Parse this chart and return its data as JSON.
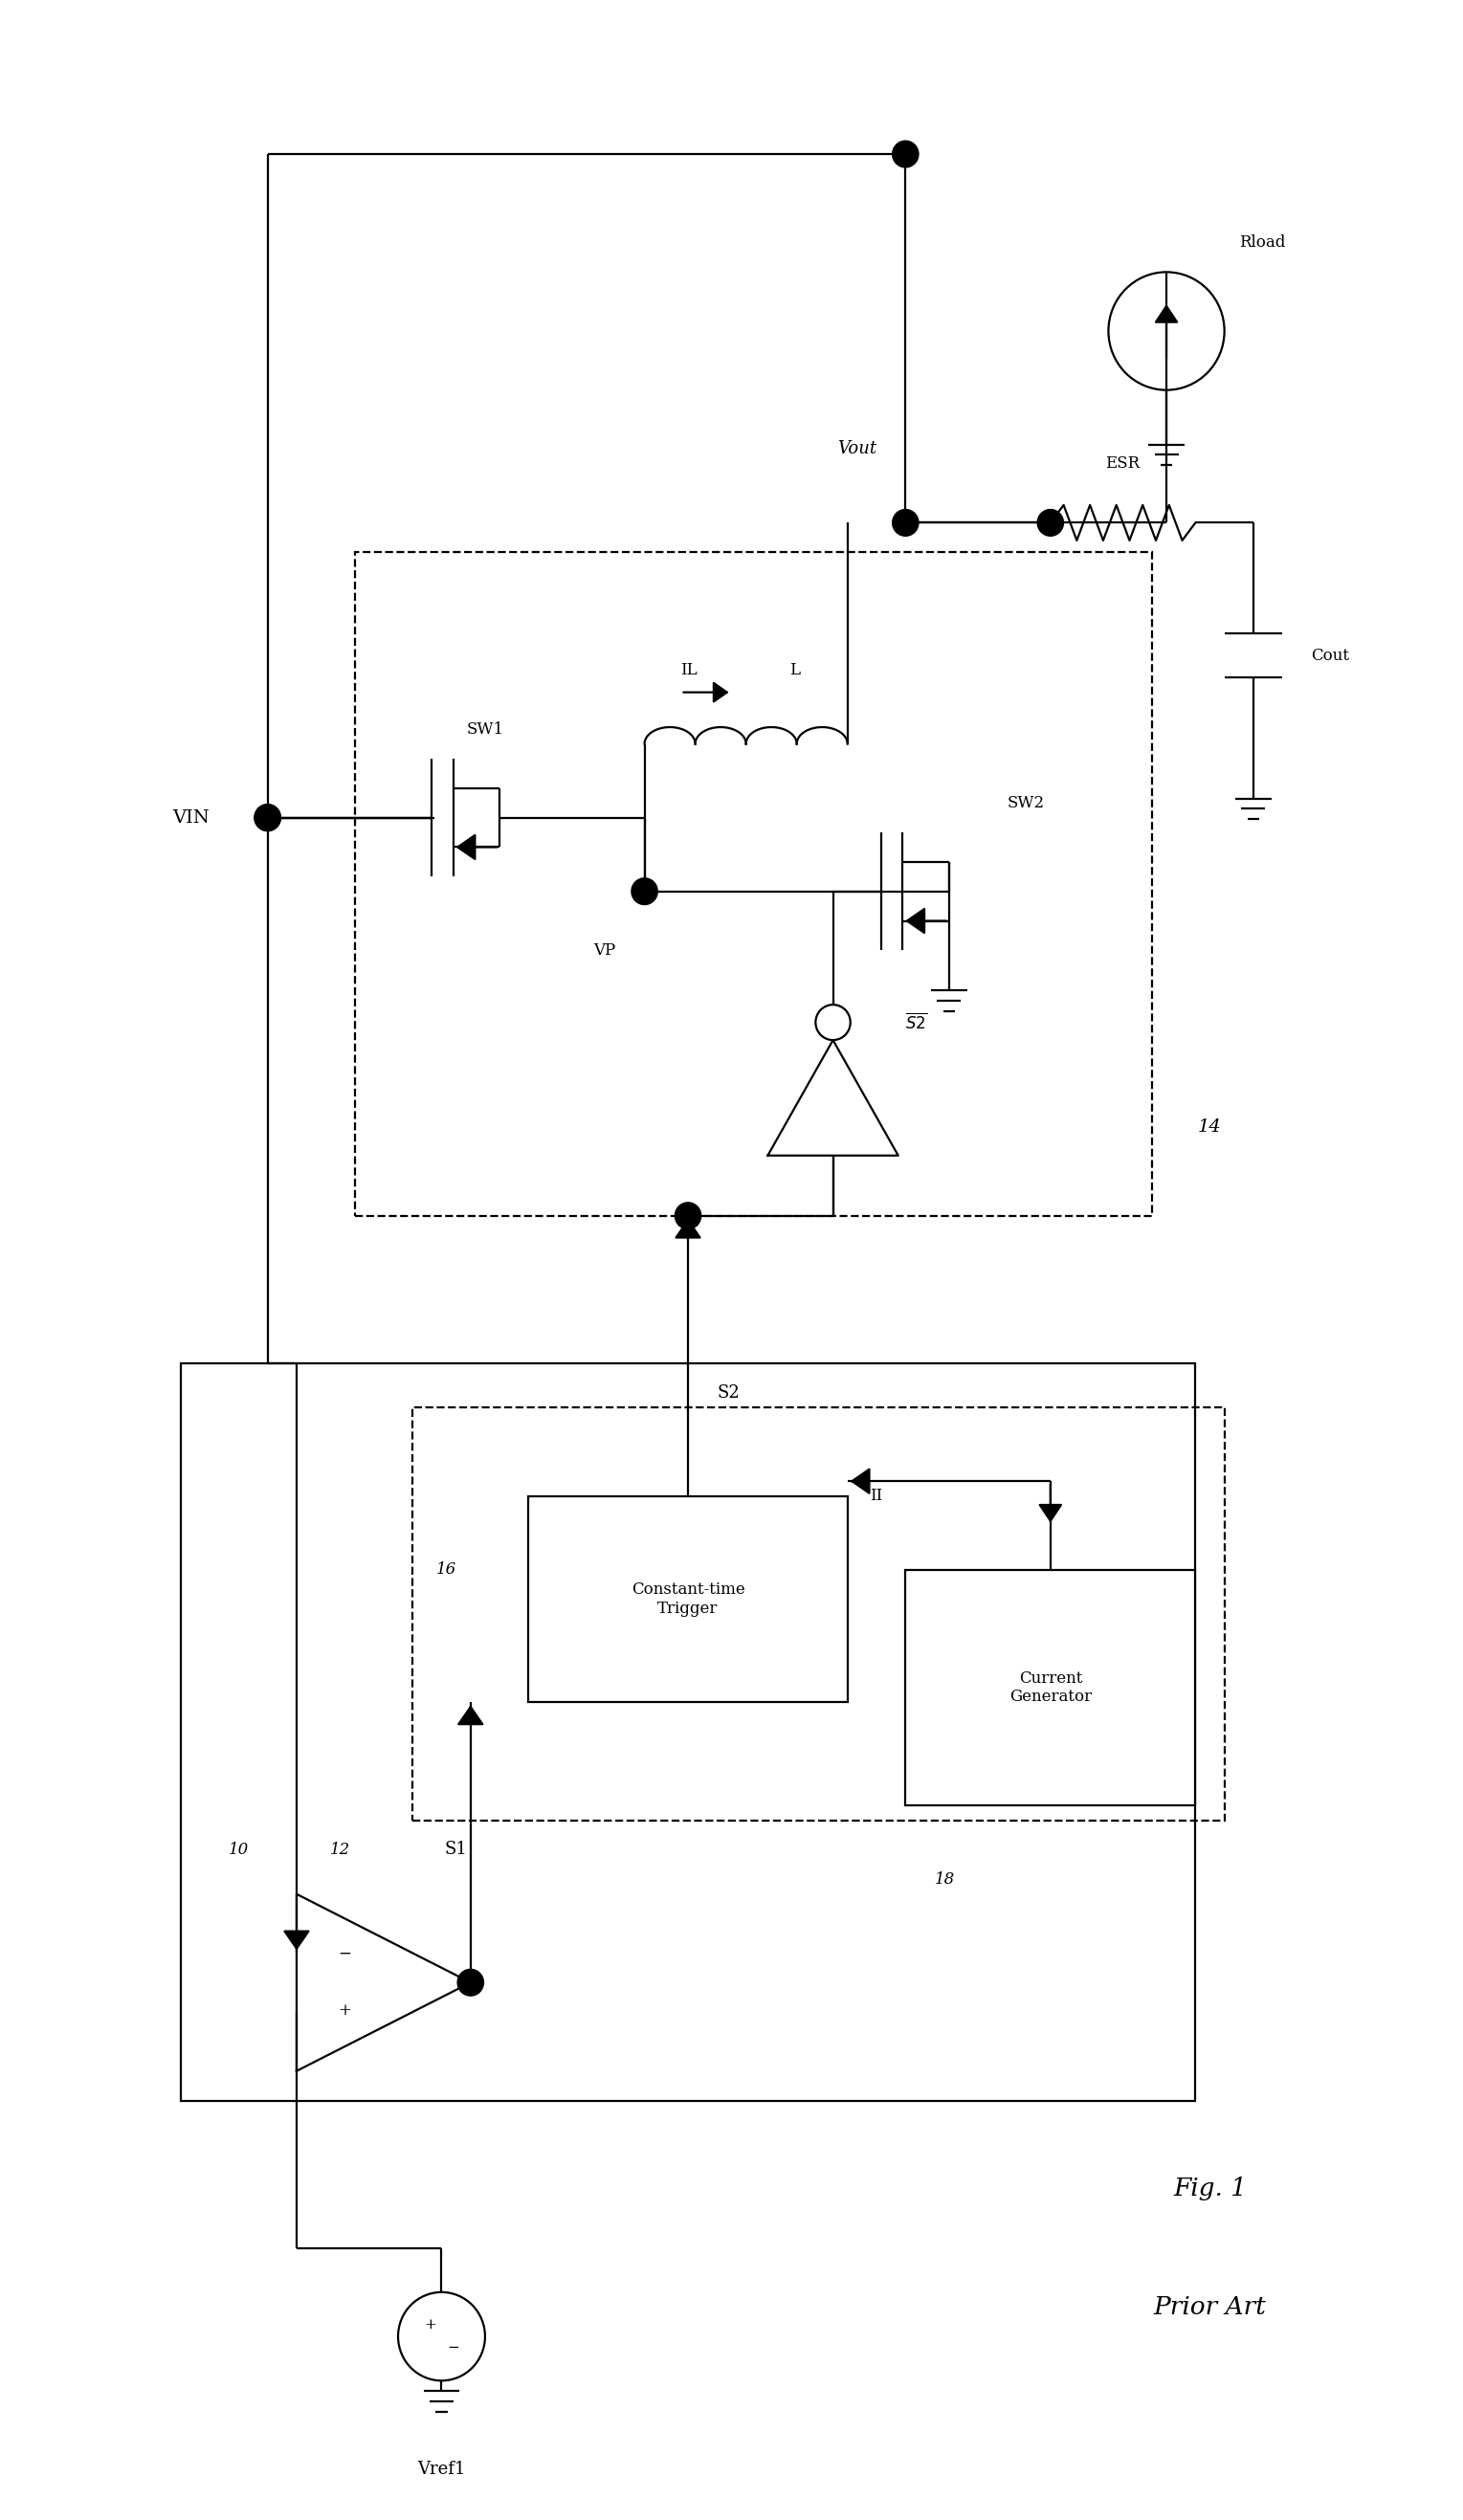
{
  "fig_title_line1": "Fig. 1",
  "fig_title_line2": "Prior Art",
  "bg": "#ffffff",
  "lc": "#000000",
  "lw": 1.6,
  "fw": 15.29,
  "fh": 26.34,
  "xlim": [
    0,
    100
  ],
  "ylim": [
    0,
    170
  ],
  "labels": {
    "VIN": "VIN",
    "Vout": "Vout",
    "Vref1": "Vref1",
    "S1": "S1",
    "S2": "S2",
    "S2bar": "$\\overline{S2}$",
    "SW1": "SW1",
    "SW2": "SW2",
    "VP": "VP",
    "IL": "IL",
    "L": "L",
    "ESR": "ESR",
    "Cout": "Cout",
    "Rload": "Rload",
    "ct_block": "Constant-time\nTrigger",
    "cg_block": "Current\nGenerator",
    "n10": "10",
    "n12": "12",
    "n14": "14",
    "n16": "16",
    "n18": "18",
    "nII": "II"
  }
}
